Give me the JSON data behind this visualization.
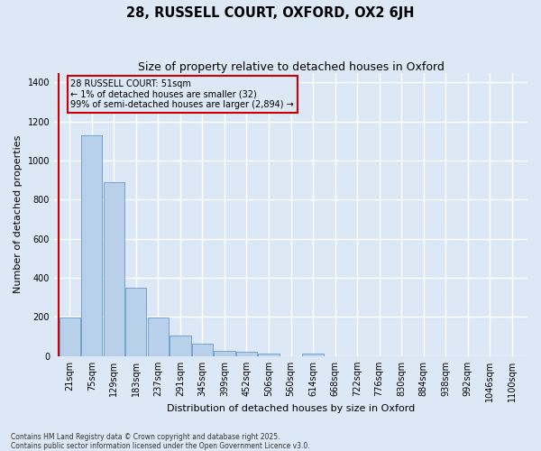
{
  "title": "28, RUSSELL COURT, OXFORD, OX2 6JH",
  "subtitle": "Size of property relative to detached houses in Oxford",
  "xlabel": "Distribution of detached houses by size in Oxford",
  "ylabel": "Number of detached properties",
  "categories": [
    "21sqm",
    "75sqm",
    "129sqm",
    "183sqm",
    "237sqm",
    "291sqm",
    "345sqm",
    "399sqm",
    "452sqm",
    "506sqm",
    "560sqm",
    "614sqm",
    "668sqm",
    "722sqm",
    "776sqm",
    "830sqm",
    "884sqm",
    "938sqm",
    "992sqm",
    "1046sqm",
    "1100sqm"
  ],
  "values": [
    195,
    1130,
    890,
    350,
    195,
    105,
    62,
    25,
    20,
    12,
    0,
    12,
    0,
    0,
    0,
    0,
    0,
    0,
    0,
    0,
    0
  ],
  "bar_color": "#b8d0ea",
  "bar_edge_color": "#6699cc",
  "vline_color": "#cc0000",
  "annotation_text": "28 RUSSELL COURT: 51sqm\n← 1% of detached houses are smaller (32)\n99% of semi-detached houses are larger (2,894) →",
  "annotation_box_edgecolor": "#cc0000",
  "background_color": "#dce8f5",
  "grid_color": "#ffffff",
  "ylim": [
    0,
    1450
  ],
  "yticks": [
    0,
    200,
    400,
    600,
    800,
    1000,
    1200,
    1400
  ],
  "footer_line1": "Contains HM Land Registry data © Crown copyright and database right 2025.",
  "footer_line2": "Contains public sector information licensed under the Open Government Licence v3.0.",
  "title_fontsize": 10.5,
  "subtitle_fontsize": 9,
  "label_fontsize": 8,
  "tick_fontsize": 7,
  "annotation_fontsize": 7,
  "footer_fontsize": 5.5
}
